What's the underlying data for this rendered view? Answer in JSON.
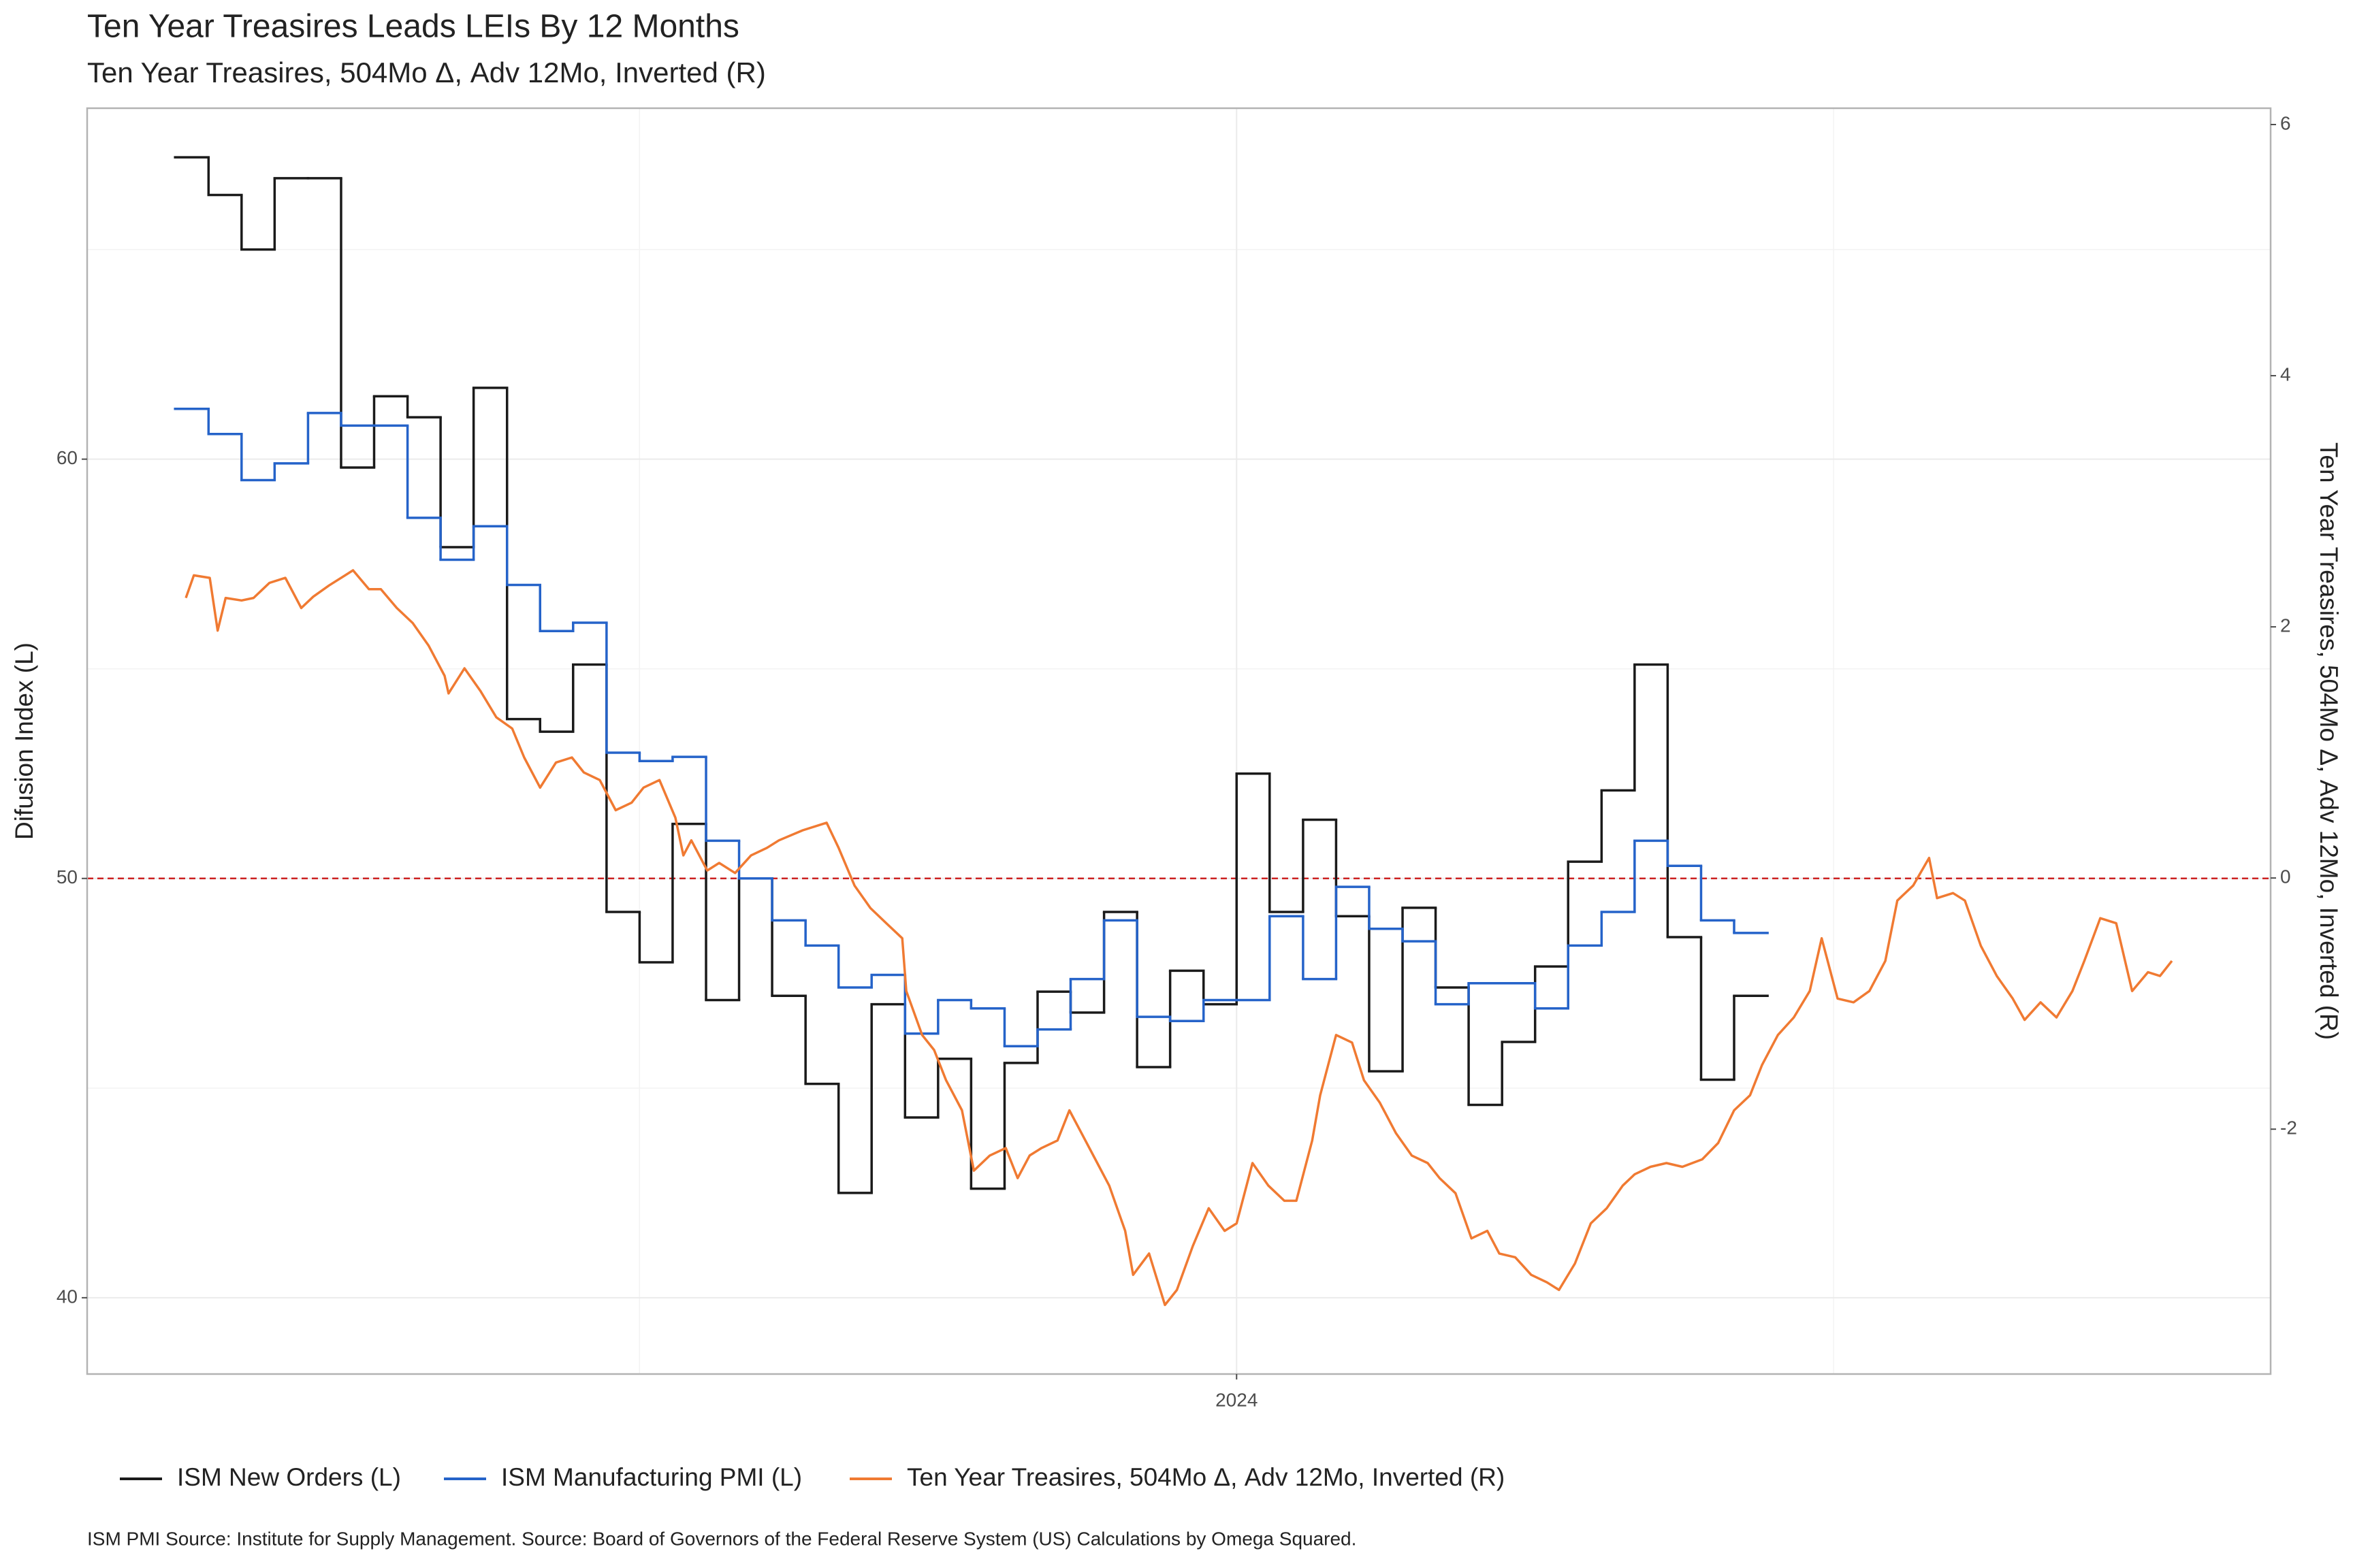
{
  "chart_data": {
    "type": "line",
    "title": "Ten Year Treasires  Leads LEIs By  12  Months",
    "subtitle": "Ten Year Treasires, 504Mo Δ, Adv 12Mo, Inverted (R)",
    "y_label": "Difusion Index (L)",
    "y2_label": "Ten Year Treasires, 504Mo Δ, Adv 12Mo, Inverted (R)",
    "caption": "ISM PMI Source: Institute for Supply Management. Source:  Board of Governors of the Federal Reserve System (US) Calculations by Omega Squared.",
    "xlim": [
      2021.112,
      2026.598
    ],
    "xticks": [
      2024
    ],
    "xminor": [
      2022.5,
      2025.5
    ],
    "ylim": [
      38.18,
      68.37
    ],
    "yticks": [
      40,
      50,
      60
    ],
    "yminor": [
      45,
      55,
      65
    ],
    "y2lim": [
      -3.95,
      6.13
    ],
    "y2ticks": [
      -2,
      0,
      2,
      4,
      6
    ],
    "hline": {
      "value": 50,
      "color": "#cc2222"
    },
    "grid": true,
    "legend": "bottom",
    "series": [
      {
        "name": "ISM New Orders (L)",
        "color": "#1a1a1a",
        "step": true,
        "x": [
          2021.333,
          2021.417,
          2021.5,
          2021.583,
          2021.667,
          2021.75,
          2021.833,
          2021.917,
          2022,
          2022.083,
          2022.167,
          2022.25,
          2022.333,
          2022.417,
          2022.5,
          2022.583,
          2022.667,
          2022.75,
          2022.833,
          2022.917,
          2023,
          2023.083,
          2023.167,
          2023.25,
          2023.333,
          2023.417,
          2023.5,
          2023.583,
          2023.667,
          2023.75,
          2023.833,
          2023.917,
          2024,
          2024.083,
          2024.167,
          2024.25,
          2024.333,
          2024.417,
          2024.5,
          2024.583,
          2024.667,
          2024.75,
          2024.833,
          2024.917,
          2025,
          2025.083,
          2025.167,
          2025.25
        ],
        "values": [
          67.2,
          66.3,
          65.0,
          66.7,
          66.7,
          59.8,
          61.5,
          61.0,
          57.9,
          61.7,
          53.8,
          53.5,
          55.1,
          49.2,
          48.0,
          51.3,
          47.1,
          50.0,
          47.2,
          45.1,
          42.5,
          47.0,
          44.3,
          45.7,
          42.6,
          45.6,
          47.3,
          46.8,
          49.2,
          45.5,
          47.8,
          47.0,
          52.5,
          49.2,
          51.4,
          49.1,
          45.4,
          49.3,
          47.4,
          44.6,
          46.1,
          47.9,
          50.4,
          52.1,
          55.1,
          48.6,
          45.2,
          47.2
        ]
      },
      {
        "name": "ISM Manufacturing PMI (L)",
        "color": "#2563c9",
        "step": true,
        "x": [
          2021.333,
          2021.417,
          2021.5,
          2021.583,
          2021.667,
          2021.75,
          2021.833,
          2021.917,
          2022,
          2022.083,
          2022.167,
          2022.25,
          2022.333,
          2022.417,
          2022.5,
          2022.583,
          2022.667,
          2022.75,
          2022.833,
          2022.917,
          2023,
          2023.083,
          2023.167,
          2023.25,
          2023.333,
          2023.417,
          2023.5,
          2023.583,
          2023.667,
          2023.75,
          2023.833,
          2023.917,
          2024,
          2024.083,
          2024.167,
          2024.25,
          2024.333,
          2024.417,
          2024.5,
          2024.583,
          2024.667,
          2024.75,
          2024.833,
          2024.917,
          2025,
          2025.083,
          2025.167,
          2025.25
        ],
        "values": [
          61.2,
          60.6,
          59.5,
          59.9,
          61.1,
          60.8,
          60.8,
          58.6,
          57.6,
          58.4,
          57.0,
          55.9,
          56.1,
          53.0,
          52.8,
          52.9,
          50.9,
          50.0,
          49.0,
          48.4,
          47.4,
          47.7,
          46.3,
          47.1,
          46.9,
          46.0,
          46.4,
          47.6,
          49.0,
          46.7,
          46.6,
          47.1,
          47.1,
          49.1,
          47.6,
          49.8,
          48.8,
          48.5,
          47.0,
          47.5,
          47.5,
          46.9,
          48.4,
          49.2,
          50.9,
          50.3,
          49.0,
          48.7
        ]
      },
      {
        "name": "Ten Year Treasires, 504Mo Δ, Adv 12Mo, Inverted (R)",
        "color": "#f07a32",
        "axis": "y2",
        "x": [
          2021.36,
          2021.38,
          2021.42,
          2021.44,
          2021.46,
          2021.5,
          2021.53,
          2021.57,
          2021.61,
          2021.65,
          2021.68,
          2021.72,
          2021.78,
          2021.82,
          2021.85,
          2021.89,
          2021.93,
          2021.97,
          2022.01,
          2022.02,
          2022.06,
          2022.1,
          2022.14,
          2022.18,
          2022.21,
          2022.25,
          2022.29,
          2022.33,
          2022.36,
          2022.4,
          2022.44,
          2022.48,
          2022.51,
          2022.55,
          2022.59,
          2022.61,
          2022.63,
          2022.67,
          2022.7,
          2022.74,
          2022.78,
          2022.82,
          2022.85,
          2022.91,
          2022.97,
          2023.0,
          2023.04,
          2023.08,
          2023.12,
          2023.16,
          2023.17,
          2023.21,
          2023.24,
          2023.27,
          2023.31,
          2023.34,
          2023.38,
          2023.42,
          2023.45,
          2023.48,
          2023.51,
          2023.55,
          2023.58,
          2023.61,
          2023.65,
          2023.68,
          2023.72,
          2023.74,
          2023.78,
          2023.82,
          2023.85,
          2023.89,
          2023.93,
          2023.97,
          2024.0,
          2024.04,
          2024.08,
          2024.12,
          2024.15,
          2024.19,
          2024.21,
          2024.25,
          2024.29,
          2024.32,
          2024.36,
          2024.4,
          2024.44,
          2024.48,
          2024.51,
          2024.55,
          2024.59,
          2024.63,
          2024.66,
          2024.7,
          2024.74,
          2024.78,
          2024.81,
          2024.85,
          2024.89,
          2024.93,
          2024.97,
          2025.0,
          2025.04,
          2025.08,
          2025.12,
          2025.17,
          2025.21,
          2025.25,
          2025.29,
          2025.32,
          2025.36,
          2025.4,
          2025.44,
          2025.47,
          2025.51,
          2025.55,
          2025.59,
          2025.63,
          2025.66,
          2025.7,
          2025.74,
          2025.76,
          2025.8,
          2025.83,
          2025.87,
          2025.91,
          2025.95,
          2025.98,
          2026.02,
          2026.06,
          2026.1,
          2026.13,
          2026.17,
          2026.21,
          2026.25,
          2026.29,
          2026.32,
          2026.35
        ],
        "values": [
          2.23,
          2.41,
          2.39,
          1.97,
          2.23,
          2.21,
          2.23,
          2.35,
          2.39,
          2.15,
          2.24,
          2.33,
          2.45,
          2.3,
          2.3,
          2.15,
          2.03,
          1.85,
          1.61,
          1.47,
          1.67,
          1.49,
          1.28,
          1.19,
          0.96,
          0.72,
          0.92,
          0.96,
          0.84,
          0.78,
          0.54,
          0.6,
          0.72,
          0.78,
          0.48,
          0.18,
          0.3,
          0.06,
          0.12,
          0.04,
          0.18,
          0.24,
          0.3,
          0.38,
          0.44,
          0.24,
          -0.06,
          -0.24,
          -0.36,
          -0.48,
          -0.9,
          -1.25,
          -1.37,
          -1.61,
          -1.85,
          -2.33,
          -2.21,
          -2.15,
          -2.39,
          -2.21,
          -2.15,
          -2.09,
          -1.85,
          -2.03,
          -2.27,
          -2.45,
          -2.81,
          -3.16,
          -2.99,
          -3.4,
          -3.28,
          -2.93,
          -2.63,
          -2.81,
          -2.75,
          -2.27,
          -2.45,
          -2.57,
          -2.57,
          -2.09,
          -1.73,
          -1.25,
          -1.31,
          -1.61,
          -1.79,
          -2.03,
          -2.21,
          -2.27,
          -2.39,
          -2.51,
          -2.87,
          -2.81,
          -2.99,
          -3.02,
          -3.16,
          -3.22,
          -3.28,
          -3.07,
          -2.75,
          -2.63,
          -2.45,
          -2.36,
          -2.3,
          -2.27,
          -2.3,
          -2.24,
          -2.11,
          -1.85,
          -1.73,
          -1.49,
          -1.25,
          -1.11,
          -0.9,
          -0.48,
          -0.96,
          -0.99,
          -0.9,
          -0.66,
          -0.18,
          -0.06,
          0.16,
          -0.16,
          -0.12,
          -0.18,
          -0.54,
          -0.78,
          -0.96,
          -1.13,
          -0.99,
          -1.11,
          -0.9,
          -0.66,
          -0.32,
          -0.36,
          -0.9,
          -0.75,
          -0.78,
          -0.66
        ]
      }
    ]
  }
}
